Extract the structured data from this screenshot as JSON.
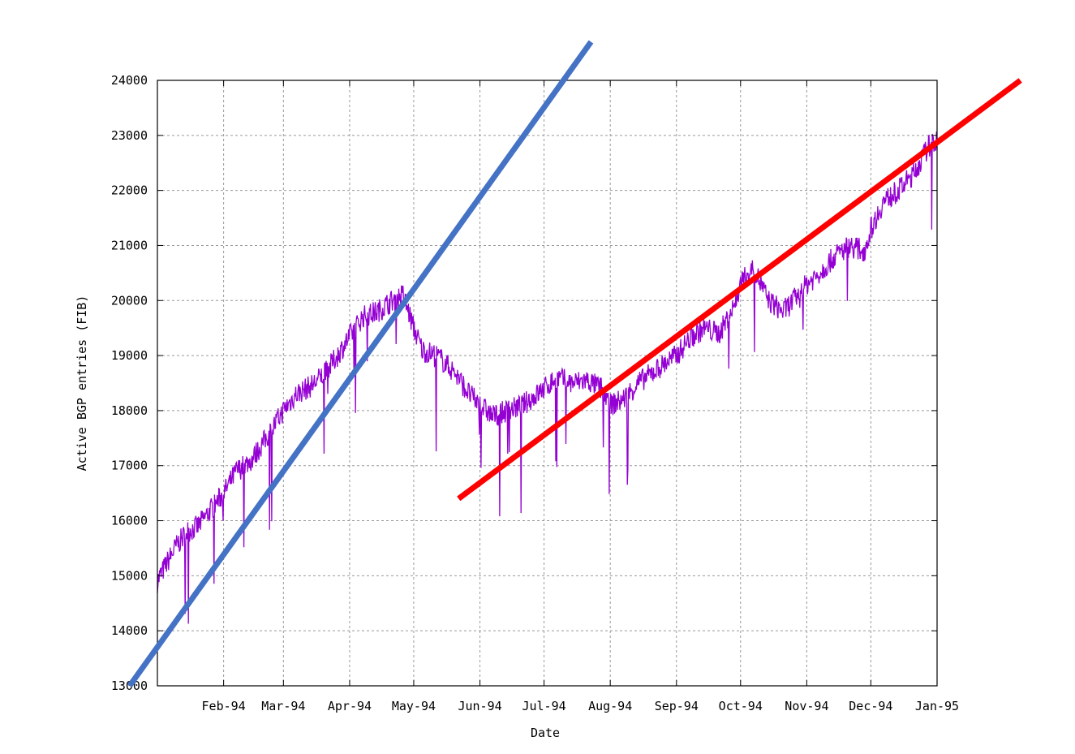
{
  "chart_data": {
    "type": "line",
    "xlabel": "Date",
    "ylabel": "Active BGP entries (FIB)",
    "xlim": [
      "1994-01-01",
      "1995-01-01"
    ],
    "ylim": [
      13000,
      24000
    ],
    "x_ticks": [
      {
        "date": "1994-02-01",
        "label": "Feb-94"
      },
      {
        "date": "1994-03-01",
        "label": "Mar-94"
      },
      {
        "date": "1994-04-01",
        "label": "Apr-94"
      },
      {
        "date": "1994-05-01",
        "label": "May-94"
      },
      {
        "date": "1994-06-01",
        "label": "Jun-94"
      },
      {
        "date": "1994-07-01",
        "label": "Jul-94"
      },
      {
        "date": "1994-08-01",
        "label": "Aug-94"
      },
      {
        "date": "1994-09-01",
        "label": "Sep-94"
      },
      {
        "date": "1994-10-01",
        "label": "Oct-94"
      },
      {
        "date": "1994-11-01",
        "label": "Nov-94"
      },
      {
        "date": "1994-12-01",
        "label": "Dec-94"
      },
      {
        "date": "1995-01-01",
        "label": "Jan-95"
      }
    ],
    "y_ticks": [
      13000,
      14000,
      15000,
      16000,
      17000,
      18000,
      19000,
      20000,
      21000,
      22000,
      23000,
      24000
    ],
    "grid": true,
    "series": [
      {
        "color": "#9400d3",
        "points": [
          [
            "1994-01-01",
            14900
          ],
          [
            "1994-01-05",
            15200
          ],
          [
            "1994-01-10",
            15550
          ],
          [
            "1994-01-15",
            15800
          ],
          [
            "1994-01-20",
            15900
          ],
          [
            "1994-01-25",
            16150
          ],
          [
            "1994-02-01",
            16500
          ],
          [
            "1994-02-07",
            16900
          ],
          [
            "1994-02-14",
            17100
          ],
          [
            "1994-02-21",
            17500
          ],
          [
            "1994-03-01",
            18000
          ],
          [
            "1994-03-07",
            18300
          ],
          [
            "1994-03-14",
            18450
          ],
          [
            "1994-03-21",
            18700
          ],
          [
            "1994-03-28",
            19100
          ],
          [
            "1994-04-01",
            19350
          ],
          [
            "1994-04-07",
            19700
          ],
          [
            "1994-04-14",
            19800
          ],
          [
            "1994-04-21",
            20000
          ],
          [
            "1994-04-26",
            20100
          ],
          [
            "1994-05-01",
            19500
          ],
          [
            "1994-05-05",
            19100
          ],
          [
            "1994-05-12",
            19000
          ],
          [
            "1994-05-20",
            18700
          ],
          [
            "1994-05-27",
            18300
          ],
          [
            "1994-06-01",
            18100
          ],
          [
            "1994-06-07",
            17900
          ],
          [
            "1994-06-14",
            18000
          ],
          [
            "1994-06-21",
            18100
          ],
          [
            "1994-06-28",
            18300
          ],
          [
            "1994-07-01",
            18400
          ],
          [
            "1994-07-07",
            18600
          ],
          [
            "1994-07-14",
            18500
          ],
          [
            "1994-07-21",
            18550
          ],
          [
            "1994-07-28",
            18400
          ],
          [
            "1994-08-01",
            18100
          ],
          [
            "1994-08-07",
            18200
          ],
          [
            "1994-08-14",
            18500
          ],
          [
            "1994-08-21",
            18700
          ],
          [
            "1994-08-28",
            18900
          ],
          [
            "1994-09-01",
            19000
          ],
          [
            "1994-09-07",
            19300
          ],
          [
            "1994-09-14",
            19500
          ],
          [
            "1994-09-21",
            19400
          ],
          [
            "1994-09-28",
            19900
          ],
          [
            "1994-10-01",
            20300
          ],
          [
            "1994-10-07",
            20600
          ],
          [
            "1994-10-14",
            20000
          ],
          [
            "1994-10-21",
            19800
          ],
          [
            "1994-10-28",
            20100
          ],
          [
            "1994-11-01",
            20300
          ],
          [
            "1994-11-07",
            20500
          ],
          [
            "1994-11-14",
            20800
          ],
          [
            "1994-11-21",
            21000
          ],
          [
            "1994-11-28",
            20900
          ],
          [
            "1994-12-01",
            21300
          ],
          [
            "1994-12-07",
            21800
          ],
          [
            "1994-12-14",
            22000
          ],
          [
            "1994-12-21",
            22300
          ],
          [
            "1994-12-28",
            22800
          ],
          [
            "1995-01-01",
            22900
          ]
        ]
      },
      {
        "color": "#4472c4",
        "points": [
          [
            "1993-12-19",
            13000
          ],
          [
            "1994-07-23",
            24700
          ]
        ]
      },
      {
        "color": "#ff0000",
        "points": [
          [
            "1994-05-22",
            16400
          ],
          [
            "1995-02-09",
            24000
          ]
        ]
      }
    ]
  }
}
